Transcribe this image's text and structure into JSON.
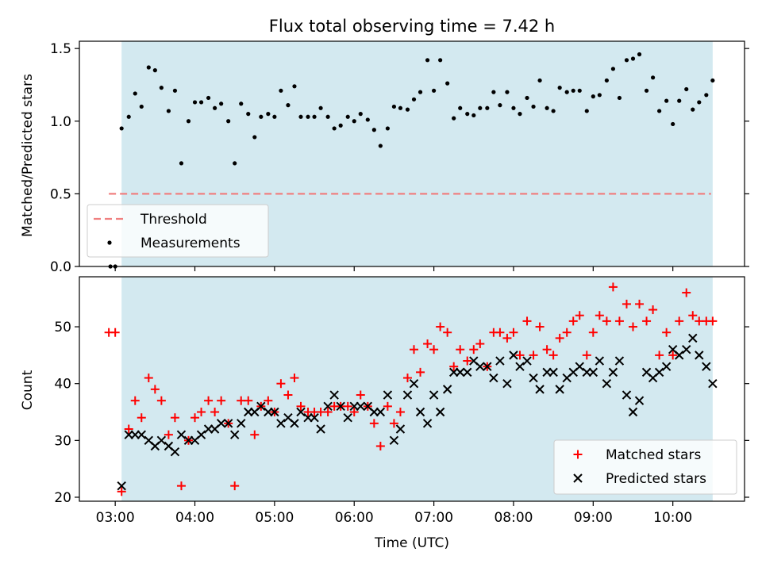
{
  "figure": {
    "title": "Flux total observing time = 7.42 h",
    "xlabel": "Time (UTC)",
    "x_tick_labels": [
      "03:00",
      "04:00",
      "05:00",
      "06:00",
      "07:00",
      "08:00",
      "09:00",
      "10:00"
    ]
  },
  "chart_data": [
    {
      "type": "scatter",
      "ylabel": "Matched/Predicted stars",
      "ylim": [
        0,
        1.55
      ],
      "y_ticks": [
        "0.0",
        "0.5",
        "1.0",
        "1.5"
      ],
      "xlim_hours": [
        2.55,
        10.9
      ],
      "shaded_span": [
        3.08,
        10.5
      ],
      "shaded_color": "#d3e9f0",
      "threshold": {
        "value": 0.5,
        "x_range": [
          2.92,
          10.48
        ],
        "color": "#f08080",
        "label": "Threshold"
      },
      "legend": {
        "position": "lower-left",
        "entries": [
          "Threshold",
          "Measurements"
        ]
      },
      "series": [
        {
          "name": "Measurements",
          "color": "#000000",
          "marker": "dot",
          "x": [
            2.94,
            3.0,
            3.08,
            3.17,
            3.25,
            3.33,
            3.42,
            3.5,
            3.58,
            3.67,
            3.75,
            3.83,
            3.92,
            4.0,
            4.08,
            4.17,
            4.25,
            4.33,
            4.42,
            4.5,
            4.58,
            4.67,
            4.75,
            4.83,
            4.92,
            5.0,
            5.08,
            5.17,
            5.25,
            5.33,
            5.42,
            5.5,
            5.58,
            5.67,
            5.75,
            5.83,
            5.92,
            6.0,
            6.08,
            6.17,
            6.25,
            6.33,
            6.42,
            6.5,
            6.58,
            6.67,
            6.75,
            6.83,
            6.92,
            7.0,
            7.08,
            7.17,
            7.25,
            7.33,
            7.42,
            7.5,
            7.58,
            7.67,
            7.75,
            7.83,
            7.92,
            8.0,
            8.08,
            8.17,
            8.25,
            8.33,
            8.42,
            8.5,
            8.58,
            8.67,
            8.75,
            8.83,
            8.92,
            9.0,
            9.08,
            9.17,
            9.25,
            9.33,
            9.42,
            9.5,
            9.58,
            9.67,
            9.75,
            9.83,
            9.92,
            10.0,
            10.08,
            10.17,
            10.25,
            10.33,
            10.42,
            10.5
          ],
          "y": [
            0.0,
            0.0,
            0.95,
            1.03,
            1.19,
            1.1,
            1.37,
            1.35,
            1.23,
            1.07,
            1.21,
            0.71,
            1.0,
            1.13,
            1.13,
            1.16,
            1.09,
            1.12,
            1.0,
            0.71,
            1.12,
            1.05,
            0.89,
            1.03,
            1.05,
            1.03,
            1.21,
            1.11,
            1.24,
            1.03,
            1.03,
            1.03,
            1.09,
            1.03,
            0.95,
            0.97,
            1.03,
            1.0,
            1.05,
            1.01,
            0.94,
            0.83,
            0.95,
            1.1,
            1.09,
            1.08,
            1.15,
            1.2,
            1.42,
            1.21,
            1.42,
            1.26,
            1.02,
            1.09,
            1.05,
            1.04,
            1.09,
            1.09,
            1.2,
            1.11,
            1.2,
            1.09,
            1.05,
            1.16,
            1.1,
            1.28,
            1.09,
            1.07,
            1.23,
            1.2,
            1.21,
            1.21,
            1.07,
            1.17,
            1.18,
            1.28,
            1.36,
            1.16,
            1.42,
            1.43,
            1.46,
            1.21,
            1.3,
            1.07,
            1.14,
            0.98,
            1.14,
            1.22,
            1.08,
            1.13,
            1.18,
            1.28
          ]
        }
      ]
    },
    {
      "type": "scatter",
      "ylabel": "Count",
      "ylim": [
        19.3,
        58.8
      ],
      "y_ticks": [
        "20",
        "30",
        "40",
        "50"
      ],
      "xlim_hours": [
        2.55,
        10.9
      ],
      "shaded_span": [
        3.08,
        10.5
      ],
      "shaded_color": "#d3e9f0",
      "legend": {
        "position": "lower-right",
        "entries": [
          "Matched stars",
          "Predicted stars"
        ]
      },
      "series": [
        {
          "name": "Matched stars",
          "color": "#ff0000",
          "marker": "plus",
          "x": [
            2.92,
            3.0,
            3.08,
            3.17,
            3.25,
            3.33,
            3.42,
            3.5,
            3.58,
            3.67,
            3.75,
            3.83,
            3.92,
            4.0,
            4.08,
            4.17,
            4.25,
            4.33,
            4.42,
            4.5,
            4.58,
            4.67,
            4.75,
            4.83,
            4.92,
            5.0,
            5.08,
            5.17,
            5.25,
            5.33,
            5.42,
            5.5,
            5.58,
            5.67,
            5.75,
            5.83,
            5.92,
            6.0,
            6.08,
            6.17,
            6.25,
            6.33,
            6.42,
            6.5,
            6.58,
            6.67,
            6.75,
            6.83,
            6.92,
            7.0,
            7.08,
            7.17,
            7.25,
            7.33,
            7.42,
            7.5,
            7.58,
            7.67,
            7.75,
            7.83,
            7.92,
            8.0,
            8.08,
            8.17,
            8.25,
            8.33,
            8.42,
            8.5,
            8.58,
            8.67,
            8.75,
            8.83,
            8.92,
            9.0,
            9.08,
            9.17,
            9.25,
            9.33,
            9.42,
            9.5,
            9.58,
            9.67,
            9.75,
            9.83,
            9.92,
            10.0,
            10.08,
            10.17,
            10.25,
            10.33,
            10.42,
            10.5
          ],
          "y": [
            49,
            49,
            21,
            32,
            37,
            34,
            41,
            39,
            37,
            31,
            34,
            22,
            30,
            34,
            35,
            37,
            35,
            37,
            33,
            22,
            37,
            37,
            31,
            36,
            37,
            35,
            40,
            38,
            41,
            36,
            35,
            35,
            35,
            35,
            36,
            36,
            36,
            35,
            38,
            36,
            33,
            29,
            36,
            33,
            35,
            41,
            46,
            42,
            47,
            46,
            50,
            49,
            43,
            46,
            44,
            46,
            47,
            43,
            49,
            49,
            48,
            49,
            45,
            51,
            45,
            50,
            46,
            45,
            48,
            49,
            51,
            52,
            45,
            49,
            52,
            51,
            57,
            51,
            54,
            50,
            54,
            51,
            53,
            45,
            49,
            45,
            51,
            56,
            52,
            51,
            51,
            51
          ]
        },
        {
          "name": "Predicted stars",
          "color": "#000000",
          "marker": "cross",
          "x": [
            3.08,
            3.17,
            3.25,
            3.33,
            3.42,
            3.5,
            3.58,
            3.67,
            3.75,
            3.83,
            3.92,
            4.0,
            4.08,
            4.17,
            4.25,
            4.33,
            4.42,
            4.5,
            4.58,
            4.67,
            4.75,
            4.83,
            4.92,
            5.0,
            5.08,
            5.17,
            5.25,
            5.33,
            5.42,
            5.5,
            5.58,
            5.67,
            5.75,
            5.83,
            5.92,
            6.0,
            6.08,
            6.17,
            6.25,
            6.33,
            6.42,
            6.5,
            6.58,
            6.67,
            6.75,
            6.83,
            6.92,
            7.0,
            7.08,
            7.17,
            7.25,
            7.33,
            7.42,
            7.5,
            7.58,
            7.67,
            7.75,
            7.83,
            7.92,
            8.0,
            8.08,
            8.17,
            8.25,
            8.33,
            8.42,
            8.5,
            8.58,
            8.67,
            8.75,
            8.83,
            8.92,
            9.0,
            9.08,
            9.17,
            9.25,
            9.33,
            9.42,
            9.5,
            9.58,
            9.67,
            9.75,
            9.83,
            9.92,
            10.0,
            10.08,
            10.17,
            10.25,
            10.33,
            10.42,
            10.5
          ],
          "y": [
            22,
            31,
            31,
            31,
            30,
            29,
            30,
            29,
            28,
            31,
            30,
            30,
            31,
            32,
            32,
            33,
            33,
            31,
            33,
            35,
            35,
            36,
            35,
            35,
            33,
            34,
            33,
            35,
            34,
            34,
            32,
            36,
            38,
            36,
            34,
            36,
            36,
            36,
            35,
            35,
            38,
            30,
            32,
            38,
            40,
            35,
            33,
            38,
            35,
            39,
            42,
            42,
            42,
            44,
            43,
            43,
            41,
            44,
            40,
            45,
            43,
            44,
            41,
            39,
            42,
            42,
            39,
            41,
            42,
            43,
            42,
            42,
            44,
            40,
            42,
            44,
            38,
            35,
            37,
            42,
            41,
            42,
            43,
            46,
            45,
            46,
            48,
            45,
            43,
            40
          ]
        }
      ]
    }
  ]
}
